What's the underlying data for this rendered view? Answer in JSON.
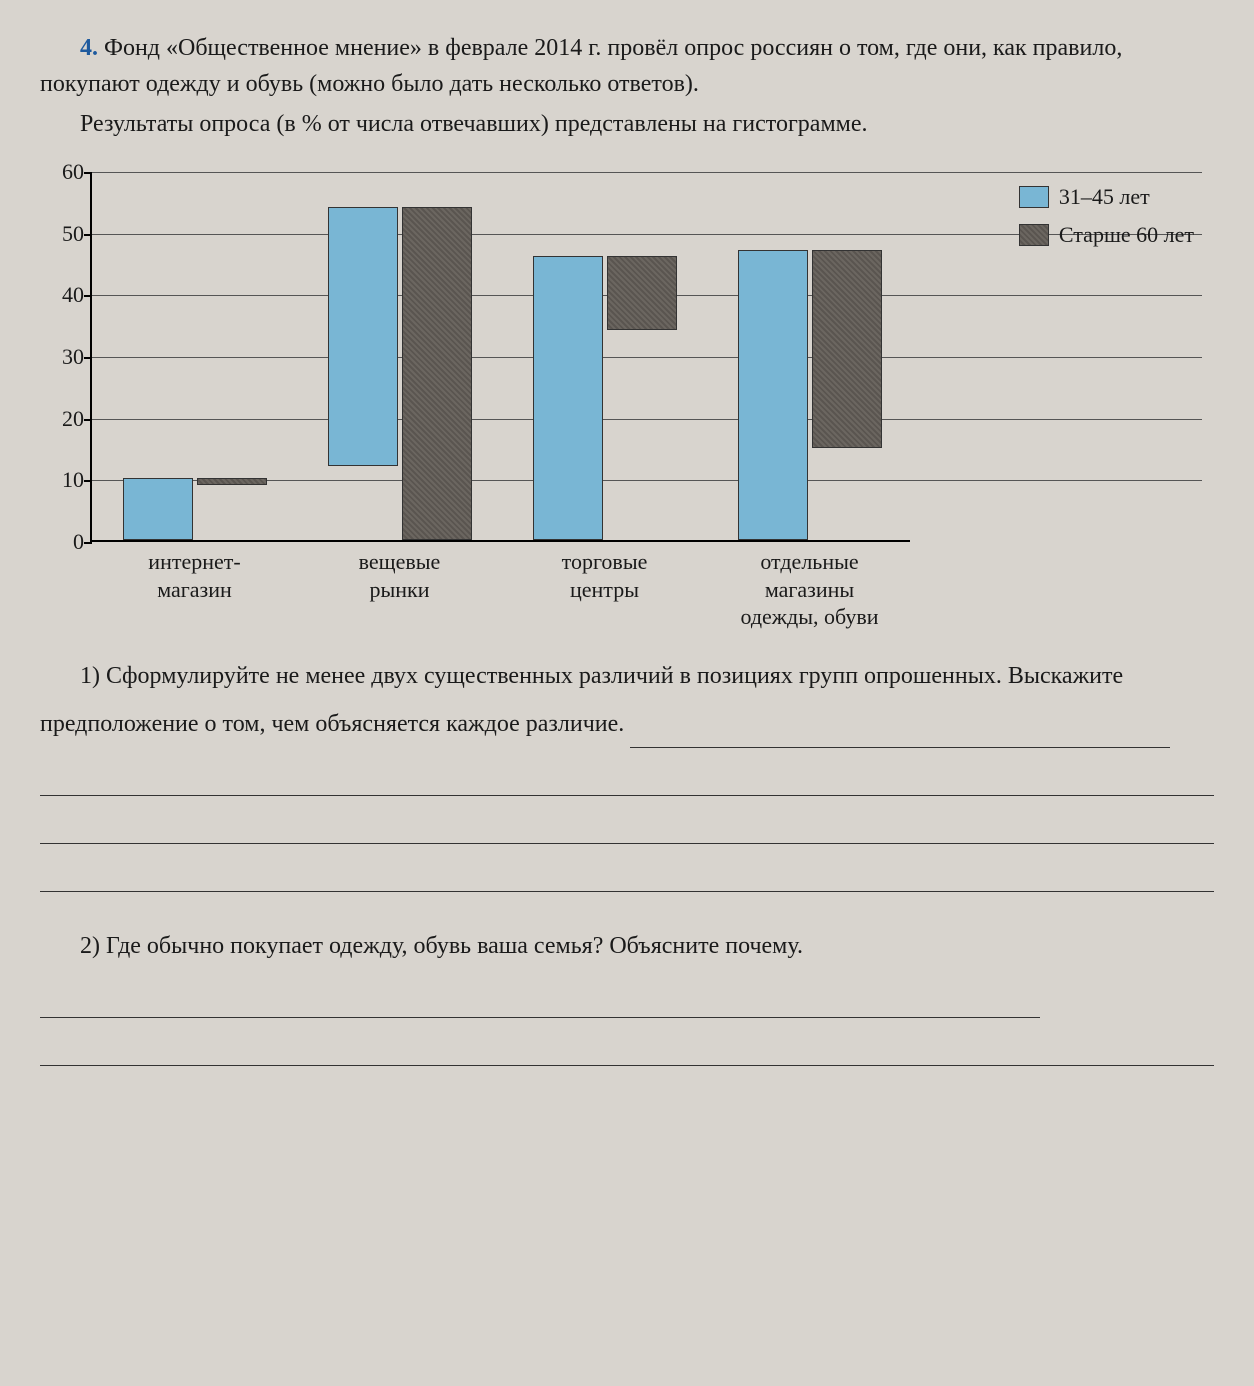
{
  "problem": {
    "number": "4.",
    "intro_p1": "Фонд «Общественное мнение» в феврале 2014 г. провёл опрос россиян о том, где они, как правило, покупают одежду и обувь (можно было дать несколько ответов).",
    "intro_p2": "Результаты опроса (в % от числа отвечавших) представлены на гистограмме."
  },
  "chart": {
    "type": "bar",
    "y_max": 60,
    "y_ticks": [
      0,
      10,
      20,
      30,
      40,
      50,
      60
    ],
    "categories": [
      {
        "label_l1": "интернет-",
        "label_l2": "магазин",
        "label_l3": "",
        "values": [
          10,
          1
        ]
      },
      {
        "label_l1": "вещевые",
        "label_l2": "рынки",
        "label_l3": "",
        "values": [
          42,
          54
        ]
      },
      {
        "label_l1": "торговые",
        "label_l2": "центры",
        "label_l3": "",
        "values": [
          46,
          12
        ]
      },
      {
        "label_l1": "отдельные",
        "label_l2": "магазины",
        "label_l3": "одежды, обуви",
        "values": [
          47,
          32
        ]
      }
    ],
    "legend": {
      "item1": "31–45 лет",
      "item2": "Старше 60 лет"
    },
    "colors": {
      "blue": "#79b6d4",
      "grey": "#6b6660",
      "grid": "#555555",
      "axis": "#000000"
    }
  },
  "questions": {
    "q1_number": "1)",
    "q1_text": "Сформулируйте не менее двух существенных различий в позициях групп опрошенных. Выскажите предположение о том, чем объясняется каждое различие.",
    "q2_number": "2)",
    "q2_text": "Где обычно покупает одежду, обувь ваша семья? Объясните почему."
  }
}
